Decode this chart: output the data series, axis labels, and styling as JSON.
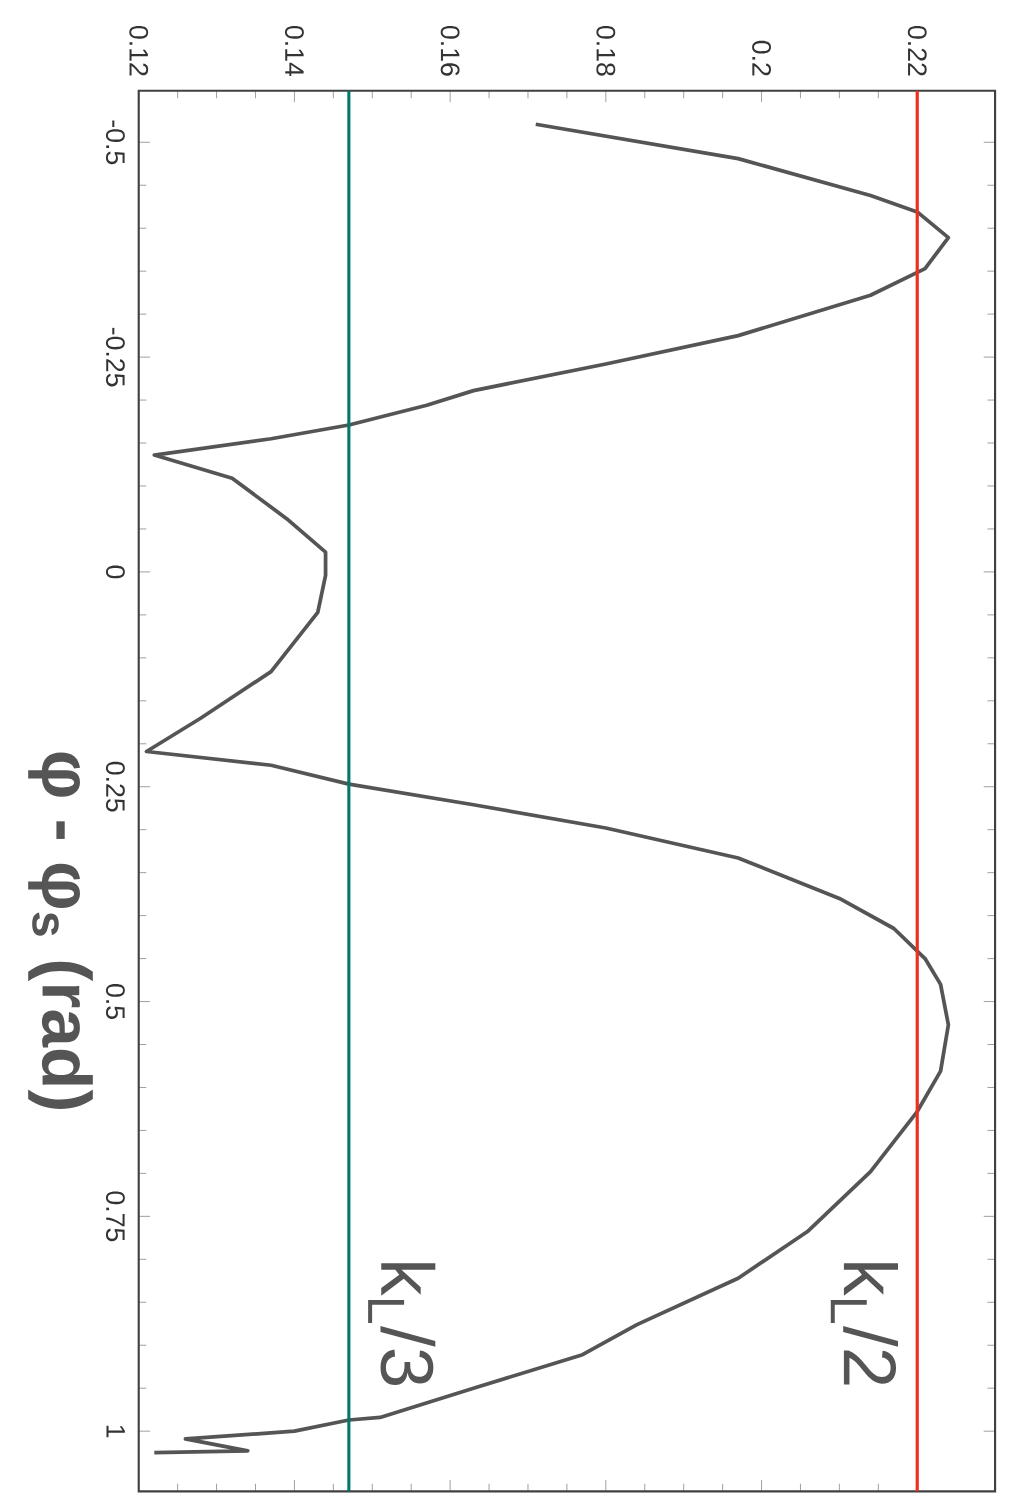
{
  "chart_data": {
    "type": "line",
    "ylabel": "φ - φ$_{s}$ (rad)",
    "x": [
      0.171,
      0.197,
      0.214,
      0.22,
      0.224,
      0.221,
      0.214,
      0.197,
      0.18,
      0.163,
      0.157,
      0.147,
      0.137,
      0.122,
      0.132,
      0.139,
      0.144,
      0.144,
      0.143,
      0.137,
      0.128,
      0.121,
      0.137,
      0.147,
      0.163,
      0.18,
      0.197,
      0.21,
      0.217,
      0.221,
      0.223,
      0.224,
      0.223,
      0.22,
      0.214,
      0.206,
      0.197,
      0.184,
      0.177,
      0.163,
      0.151,
      0.147,
      0.14,
      0.126,
      0.134,
      0.122
    ],
    "series": [
      {
        "color": "#555555",
        "values": [
          -0.521,
          -0.481,
          -0.438,
          -0.419,
          -0.389,
          -0.353,
          -0.322,
          -0.275,
          -0.242,
          -0.211,
          -0.194,
          -0.171,
          -0.155,
          -0.136,
          -0.109,
          -0.062,
          -0.023,
          0.004,
          0.047,
          0.116,
          0.17,
          0.209,
          0.225,
          0.247,
          0.271,
          0.298,
          0.333,
          0.38,
          0.415,
          0.45,
          0.48,
          0.527,
          0.581,
          0.628,
          0.698,
          0.767,
          0.822,
          0.876,
          0.911,
          0.95,
          0.984,
          0.987,
          1.0,
          1.009,
          1.023,
          1.025
        ]
      }
    ],
    "xlim": [
      0.12,
      0.23
    ],
    "ylim": [
      1.07,
      -0.56
    ],
    "xticks": [
      0.12,
      0.14,
      0.16,
      0.18,
      0.2,
      0.22
    ],
    "yticks": [
      -0.5,
      -0.25,
      0,
      0.25,
      0.5,
      0.75,
      1
    ],
    "ref_lines": [
      {
        "axis": "x",
        "value": 0.22,
        "label": "k$_{L}$/2",
        "color": "#e8321e"
      },
      {
        "axis": "x",
        "value": 0.147,
        "label": "k$_{L}$/3",
        "color": "#00786a"
      }
    ],
    "grid": false,
    "marker": "none",
    "line_style": "solid"
  }
}
